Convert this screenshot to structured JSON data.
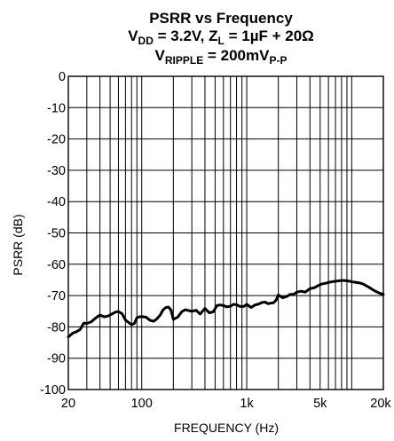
{
  "chart_data": {
    "type": "line",
    "title": "PSRR vs Frequency",
    "subtitle1": {
      "v": "V",
      "v_sub": "DD",
      "v_text": " = 3.2V, Z",
      "z_sub": "L",
      "z_text": " = 1µF + 20Ω"
    },
    "subtitle2": {
      "v": "V",
      "v_sub": "RIPPLE",
      "v_text": " = 200mV",
      "p_sub": "P-P"
    },
    "xlabel": "FREQUENCY (Hz)",
    "ylabel": "PSRR (dB)",
    "x_scale": "log",
    "xlim": [
      20,
      20000
    ],
    "ylim": [
      -100,
      0
    ],
    "x_ticks": [
      {
        "value": 20,
        "label": "20"
      },
      {
        "value": 100,
        "label": "100"
      },
      {
        "value": 1000,
        "label": "1k"
      },
      {
        "value": 5000,
        "label": "5k"
      },
      {
        "value": 20000,
        "label": "20k"
      }
    ],
    "y_ticks": [
      0,
      -10,
      -20,
      -30,
      -40,
      -50,
      -60,
      -70,
      -80,
      -90,
      -100
    ],
    "y_tick_labels": [
      "0",
      "-10",
      "-20",
      "-30",
      "-40",
      "-50",
      "-60",
      "-70",
      "-80",
      "-90",
      "-100"
    ],
    "grid": true,
    "series": [
      {
        "x": [
          20,
          22,
          24,
          26,
          28,
          30,
          33,
          36,
          40,
          44,
          48,
          52,
          56,
          60,
          65,
          70,
          75,
          80,
          85,
          90,
          95,
          100,
          110,
          120,
          130,
          140,
          150,
          160,
          170,
          180,
          190,
          200,
          220,
          240,
          260,
          280,
          300,
          330,
          360,
          400,
          440,
          480,
          520,
          560,
          600,
          650,
          700,
          750,
          800,
          850,
          900,
          950,
          1000,
          1100,
          1200,
          1300,
          1400,
          1500,
          1600,
          1700,
          1800,
          1900,
          2000,
          2200,
          2400,
          2600,
          2800,
          3000,
          3300,
          3600,
          4000,
          4400,
          4800,
          5200,
          5600,
          6000,
          6500,
          7000,
          7500,
          8000,
          8500,
          9000,
          9500,
          10000,
          11000,
          12000,
          13000,
          14000,
          15000,
          16000,
          17000,
          18000,
          19000,
          20000
        ],
        "y": [
          -83.2,
          -82,
          -81.5,
          -80.8,
          -78.8,
          -78.9,
          -78.4,
          -77.3,
          -76.2,
          -76.8,
          -76.5,
          -75.9,
          -75.3,
          -75.1,
          -75.8,
          -77.8,
          -78.6,
          -79.3,
          -78.9,
          -77.1,
          -76.8,
          -76.7,
          -76.9,
          -77.9,
          -78.2,
          -77.4,
          -76.2,
          -74.5,
          -73.8,
          -73.7,
          -74.6,
          -77.6,
          -76.9,
          -75.2,
          -74.5,
          -74.8,
          -75.0,
          -74.7,
          -75.9,
          -74.1,
          -75.5,
          -75.2,
          -73.2,
          -73.0,
          -73.2,
          -73.6,
          -73.4,
          -72.8,
          -72.9,
          -73.4,
          -73.5,
          -73.4,
          -72.8,
          -73.8,
          -73.0,
          -72.7,
          -72.2,
          -72.1,
          -72.6,
          -72.4,
          -72.3,
          -71.5,
          -69.8,
          -70.7,
          -70.3,
          -69.6,
          -69.6,
          -68.9,
          -68.6,
          -68.9,
          -67.8,
          -67.5,
          -66.8,
          -66.3,
          -66.1,
          -65.8,
          -65.6,
          -65.4,
          -65.3,
          -65.2,
          -65.2,
          -65.3,
          -65.4,
          -65.6,
          -65.8,
          -66.0,
          -66.4,
          -67.0,
          -67.6,
          -68.2,
          -68.7,
          -69.1,
          -69.4,
          -69.6
        ]
      }
    ]
  }
}
